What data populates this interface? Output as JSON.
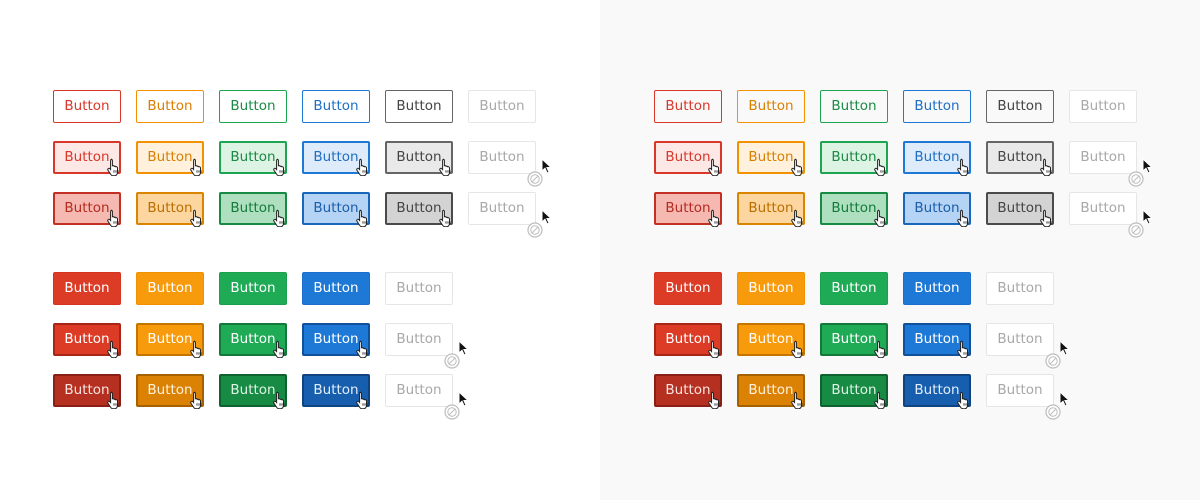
{
  "button_label": "Button",
  "colors": {
    "red": "#dc3b26",
    "orange": "#f79a0b",
    "green": "#1faa55",
    "blue": "#1e78d6",
    "gray": "#666666",
    "disabled": "#a8a8a8",
    "left_background": "#ffffff",
    "right_background": "#f9f9f9"
  },
  "icons": {
    "hover_cursor": "hand-pointer-icon",
    "disabled_cursor": "arrow-cursor-icon",
    "disabled_badge": "not-allowed-icon"
  }
}
